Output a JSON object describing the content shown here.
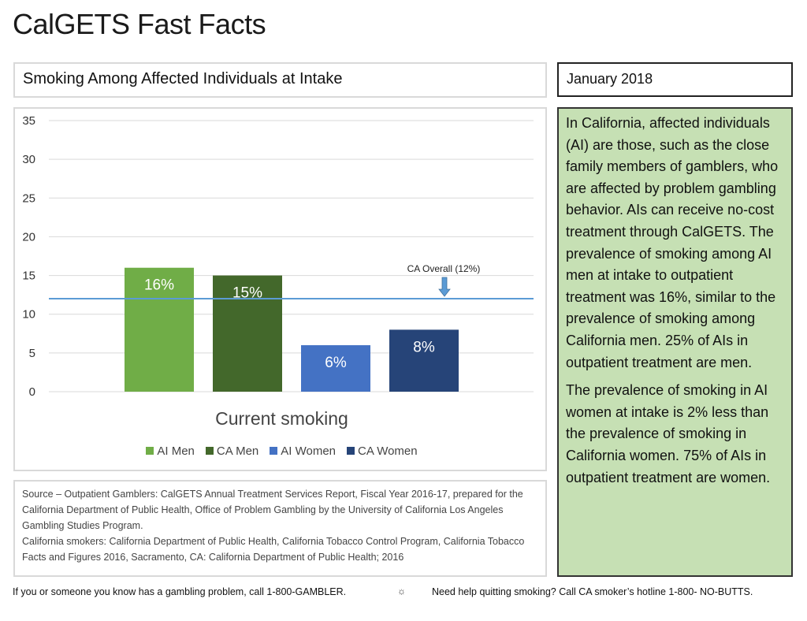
{
  "page": {
    "title": "CalGETS Fast Facts",
    "chart_heading": "Smoking Among Affected Individuals at Intake",
    "date": "January 2018"
  },
  "info_box": {
    "paragraphs": [
      "In California, affected individuals (AI) are those, such as the close family members of gamblers, who are affected by problem gambling behavior. AIs can receive no-cost treatment through CalGETS. The prevalence of smoking among AI men at intake to outpatient treatment was 16%, similar to the prevalence of smoking among California men. 25% of AIs in outpatient treatment are men.",
      "The prevalence of smoking in AI women at intake is 2% less than the prevalence of smoking in California women. 75% of AIs in outpatient treatment are women."
    ],
    "background_color": "#c6e0b4"
  },
  "source": {
    "lines": [
      "Source – Outpatient Gamblers: CalGETS Annual Treatment Services Report, Fiscal Year 2016-17, prepared for the California Department of Public Health, Office of Problem Gambling by the University of California Los Angeles Gambling Studies Program.",
      "California smokers: California Department of Public Health, California Tobacco Control Program, California Tobacco Facts and Figures 2016, Sacramento, CA: California Department of Public Health; 2016"
    ]
  },
  "footer": {
    "left": "If you or someone you know has a gambling problem, call 1-800-GAMBLER.",
    "separator_icon": "gear-icon",
    "separator_glyph": "☼",
    "right": "Need help quitting smoking? Call CA smoker’s hotline 1-800- NO-BUTTS."
  },
  "chart_data": {
    "type": "bar",
    "title": "Smoking Among Affected Individuals at Intake",
    "xlabel": "Current smoking",
    "ylabel": "",
    "categories": [
      "Current smoking"
    ],
    "series": [
      {
        "name": "AI Men",
        "values": [
          16
        ],
        "label": "16%",
        "color": "#70ad47"
      },
      {
        "name": "CA Men",
        "values": [
          15
        ],
        "label": "15%",
        "color": "#43682b"
      },
      {
        "name": "AI Women",
        "values": [
          6
        ],
        "label": "6%",
        "color": "#4472c4"
      },
      {
        "name": "CA Women",
        "values": [
          8
        ],
        "label": "8%",
        "color": "#264478"
      }
    ],
    "ylim": [
      0,
      35
    ],
    "yticks": [
      0,
      5,
      10,
      15,
      20,
      25,
      30,
      35
    ],
    "ytick_labels": [
      "0",
      "5",
      "10",
      "15",
      "20",
      "25",
      "30",
      "35"
    ],
    "grid": true,
    "legend_position": "bottom",
    "reference_line": {
      "value": 12,
      "label": "CA Overall (12%)",
      "color": "#5b9bd5"
    }
  }
}
